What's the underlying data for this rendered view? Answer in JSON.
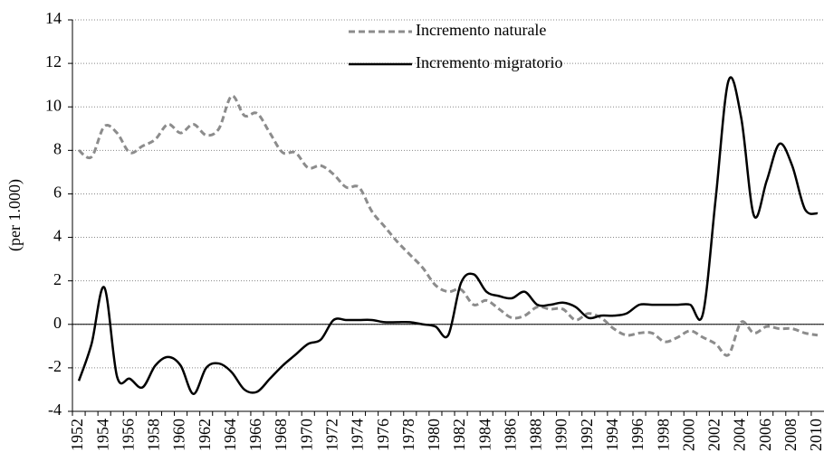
{
  "chart_data": {
    "type": "line",
    "y_label": "(per 1.000)",
    "categories": [
      "1952",
      null,
      "1954",
      null,
      "1956",
      null,
      "1958",
      null,
      "1960",
      null,
      "1962",
      null,
      "1964",
      null,
      "1966",
      null,
      "1968",
      null,
      "1970",
      null,
      "1972",
      null,
      "1974",
      null,
      "1976",
      null,
      "1978",
      null,
      "1980",
      null,
      "1982",
      null,
      "1984",
      null,
      "1986",
      null,
      "1988",
      null,
      "1990",
      null,
      "1992",
      null,
      "1994",
      null,
      "1996",
      null,
      "1998",
      null,
      "2000",
      null,
      "2002",
      null,
      "2004",
      null,
      "2006",
      null,
      "2008",
      null,
      "2010"
    ],
    "series": [
      {
        "name": "Incremento naturale",
        "color": "#8c8c8c",
        "dashed": true,
        "values": [
          8.0,
          7.7,
          9.1,
          8.8,
          7.9,
          8.2,
          8.5,
          9.2,
          8.8,
          9.2,
          8.7,
          9.0,
          10.5,
          9.6,
          9.7,
          8.8,
          7.9,
          7.9,
          7.2,
          7.3,
          6.9,
          6.3,
          6.3,
          5.2,
          4.5,
          3.8,
          3.2,
          2.6,
          1.8,
          1.5,
          1.6,
          0.9,
          1.1,
          0.7,
          0.3,
          0.4,
          0.8,
          0.7,
          0.7,
          0.2,
          0.5,
          0.3,
          -0.2,
          -0.5,
          -0.4,
          -0.4,
          -0.8,
          -0.6,
          -0.3,
          -0.6,
          -0.9,
          -1.4,
          0.1,
          -0.4,
          -0.1,
          -0.2,
          -0.2,
          -0.4,
          -0.5
        ]
      },
      {
        "name": "Incremento migratorio",
        "color": "#000000",
        "dashed": false,
        "values": [
          -2.6,
          -0.9,
          1.7,
          -2.4,
          -2.5,
          -2.9,
          -1.9,
          -1.5,
          -1.9,
          -3.2,
          -2.0,
          -1.8,
          -2.2,
          -3.0,
          -3.1,
          -2.5,
          -1.9,
          -1.4,
          -0.9,
          -0.7,
          0.2,
          0.2,
          0.2,
          0.2,
          0.1,
          0.1,
          0.1,
          0.0,
          -0.1,
          -0.5,
          1.9,
          2.3,
          1.5,
          1.3,
          1.2,
          1.5,
          0.9,
          0.9,
          1.0,
          0.8,
          0.3,
          0.4,
          0.4,
          0.5,
          0.9,
          0.9,
          0.9,
          0.9,
          0.9,
          0.5,
          5.8,
          11.2,
          9.5,
          5.0,
          6.6,
          8.3,
          7.3,
          5.3,
          5.1
        ]
      }
    ],
    "ylim": [
      -4,
      14
    ],
    "yticks": [
      -4,
      -2,
      0,
      2,
      4,
      6,
      8,
      10,
      12,
      14
    ],
    "grid": true
  }
}
